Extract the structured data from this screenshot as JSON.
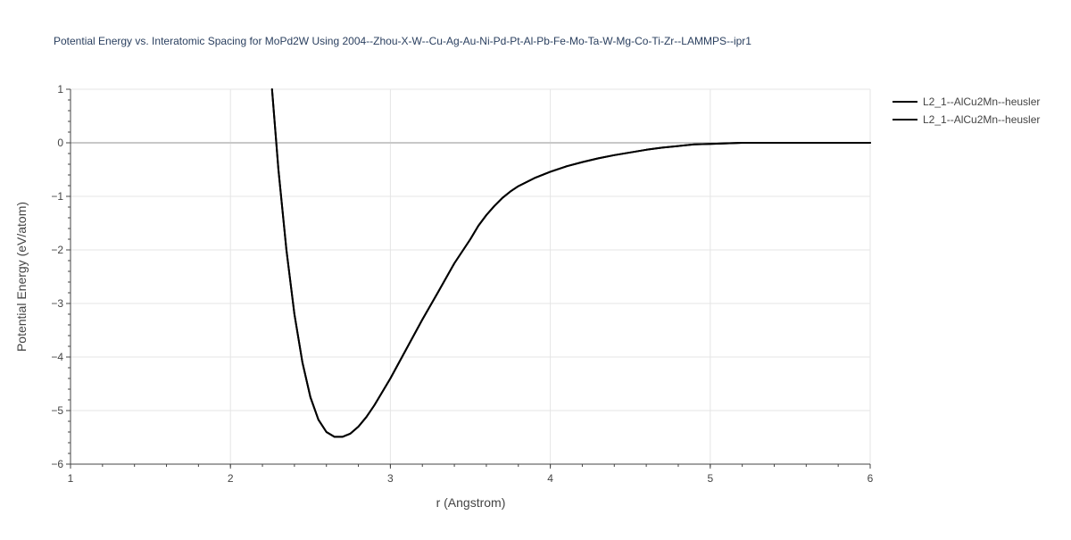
{
  "chart_data": {
    "type": "line",
    "title": "Potential Energy vs. Interatomic Spacing for MoPd2W Using 2004--Zhou-X-W--Cu-Ag-Au-Ni-Pd-Pt-Al-Pb-Fe-Mo-Ta-W-Mg-Co-Ti-Zr--LAMMPS--ipr1",
    "xlabel": "r (Angstrom)",
    "ylabel": "Potential Energy (eV/atom)",
    "xlim": [
      1,
      6
    ],
    "ylim": [
      -6,
      1
    ],
    "x_ticks": [
      1,
      2,
      3,
      4,
      5,
      6
    ],
    "x_tick_labels": [
      "1",
      "2",
      "3",
      "4",
      "5",
      "6"
    ],
    "y_ticks": [
      1,
      0,
      -1,
      -2,
      -3,
      -4,
      -5,
      -6
    ],
    "y_tick_labels": [
      "1",
      "0",
      "−1",
      "−2",
      "−3",
      "−4",
      "−5",
      "−6"
    ],
    "grid": true,
    "legend_position": "top-right",
    "colors": {
      "series": "#000000",
      "grid": "#e5e5e5",
      "zeroline": "#c8c8c8",
      "text": "#444444",
      "title": "#2a3f5f"
    },
    "series": [
      {
        "name": "L2_1--AlCu2Mn--heusler",
        "x": [
          2.26,
          2.3,
          2.35,
          2.4,
          2.45,
          2.5,
          2.55,
          2.6,
          2.65,
          2.7,
          2.75,
          2.8,
          2.85,
          2.9,
          2.95,
          3.0,
          3.1,
          3.2,
          3.3,
          3.4,
          3.5,
          3.55,
          3.6,
          3.65,
          3.7,
          3.75,
          3.8,
          3.9,
          4.0,
          4.1,
          4.2,
          4.3,
          4.4,
          4.5,
          4.6,
          4.7,
          4.8,
          4.9,
          5.0,
          5.1,
          5.2,
          5.4,
          5.6,
          5.8,
          6.0
        ],
        "y": [
          1.0,
          -0.5,
          -2.0,
          -3.2,
          -4.1,
          -4.75,
          -5.17,
          -5.4,
          -5.49,
          -5.49,
          -5.43,
          -5.3,
          -5.12,
          -4.9,
          -4.65,
          -4.4,
          -3.85,
          -3.3,
          -2.78,
          -2.25,
          -1.8,
          -1.55,
          -1.35,
          -1.18,
          -1.03,
          -0.91,
          -0.81,
          -0.66,
          -0.54,
          -0.44,
          -0.36,
          -0.29,
          -0.23,
          -0.18,
          -0.13,
          -0.09,
          -0.06,
          -0.03,
          -0.02,
          -0.01,
          0.0,
          0.0,
          0.0,
          0.0,
          0.0
        ]
      },
      {
        "name": "L2_1--AlCu2Mn--heusler",
        "x": [
          2.26,
          2.3,
          2.35,
          2.4,
          2.45,
          2.5,
          2.55,
          2.6,
          2.65,
          2.7,
          2.75,
          2.8,
          2.85,
          2.9,
          2.95,
          3.0,
          3.1,
          3.2,
          3.3,
          3.4,
          3.5,
          3.55,
          3.6,
          3.65,
          3.7,
          3.75,
          3.8,
          3.9,
          4.0,
          4.1,
          4.2,
          4.3,
          4.4,
          4.5,
          4.6,
          4.7,
          4.8,
          4.9,
          5.0,
          5.1,
          5.2,
          5.4,
          5.6,
          5.8,
          6.0
        ],
        "y": [
          1.0,
          -0.5,
          -2.0,
          -3.2,
          -4.1,
          -4.75,
          -5.17,
          -5.4,
          -5.49,
          -5.49,
          -5.43,
          -5.3,
          -5.12,
          -4.9,
          -4.65,
          -4.4,
          -3.85,
          -3.3,
          -2.78,
          -2.25,
          -1.8,
          -1.55,
          -1.35,
          -1.18,
          -1.03,
          -0.91,
          -0.81,
          -0.66,
          -0.54,
          -0.44,
          -0.36,
          -0.29,
          -0.23,
          -0.18,
          -0.13,
          -0.09,
          -0.06,
          -0.03,
          -0.02,
          -0.01,
          0.0,
          0.0,
          0.0,
          0.0,
          0.0
        ]
      }
    ]
  }
}
